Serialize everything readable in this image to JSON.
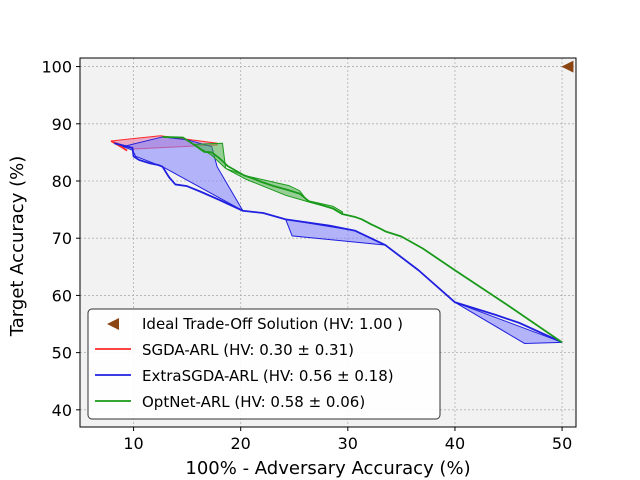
{
  "chart_data": {
    "type": "line",
    "xlabel": "100% - Adversary Accuracy (%)",
    "ylabel": "Target Accuracy (%)",
    "xlim": [
      5,
      51.3
    ],
    "ylim": [
      37,
      101.5
    ],
    "xticks": [
      10,
      20,
      30,
      40,
      50
    ],
    "yticks": [
      40,
      50,
      60,
      70,
      80,
      90,
      100
    ],
    "grid": true,
    "legend_position": "lower-left",
    "ideal_point": {
      "name": "Ideal Trade-Off Solution (HV: 1.00 )",
      "x": 50.5,
      "y": 100,
      "marker": "left-triangle",
      "color": "#8B4513"
    },
    "series": [
      {
        "name": "SGDA-ARL (HV: 0.30 ± 0.31)",
        "color": "#ff2a2a",
        "fill": "#e06fa0",
        "line": [
          [
            7.9,
            87.0
          ],
          [
            9.0,
            85.8
          ],
          [
            9.4,
            85.3
          ]
        ],
        "band_upper": [
          [
            7.9,
            87.0
          ],
          [
            12.5,
            87.9
          ],
          [
            17.8,
            86.6
          ]
        ],
        "band_lower": [
          [
            7.9,
            87.0
          ],
          [
            10.0,
            85.6
          ],
          [
            17.8,
            86.3
          ]
        ]
      },
      {
        "name": "ExtraSGDA-ARL (HV: 0.56 ± 0.18)",
        "color": "#2020e0",
        "fill": "#8080ff",
        "line": [
          [
            8.2,
            86.6
          ],
          [
            9.9,
            85.8
          ],
          [
            10.0,
            84.3
          ],
          [
            10.5,
            83.7
          ],
          [
            11.5,
            83.1
          ],
          [
            12.3,
            82.8
          ],
          [
            12.7,
            82.5
          ],
          [
            13.3,
            80.7
          ],
          [
            13.9,
            79.4
          ],
          [
            15.0,
            79.1
          ],
          [
            16.3,
            78.1
          ],
          [
            18.0,
            76.7
          ],
          [
            20.2,
            74.8
          ],
          [
            22.1,
            74.4
          ],
          [
            24.2,
            73.3
          ],
          [
            28.3,
            72.2
          ],
          [
            30.7,
            71.3
          ],
          [
            33.5,
            68.8
          ],
          [
            36.6,
            64.4
          ],
          [
            40.0,
            58.8
          ],
          [
            43.8,
            56.6
          ],
          [
            46.0,
            55.2
          ],
          [
            50.0,
            51.8
          ]
        ],
        "band_upper": [
          [
            8.2,
            86.6
          ],
          [
            9.0,
            86.0
          ],
          [
            12.7,
            87.7
          ],
          [
            15.0,
            87.2
          ],
          [
            17.3,
            86.0
          ],
          [
            17.8,
            82.5
          ],
          [
            20.2,
            74.8
          ]
        ],
        "band_lower": [
          [
            8.2,
            86.6
          ],
          [
            9.9,
            85.4
          ],
          [
            10.2,
            84.3
          ],
          [
            12.7,
            82.5
          ],
          [
            20.2,
            74.8
          ]
        ],
        "band2_upper": [
          [
            24.2,
            73.3
          ],
          [
            30.7,
            71.3
          ],
          [
            33.5,
            68.8
          ]
        ],
        "band2_lower": [
          [
            24.2,
            73.3
          ],
          [
            24.8,
            70.4
          ],
          [
            33.5,
            68.8
          ]
        ],
        "band3_upper": [
          [
            40.0,
            58.8
          ],
          [
            50.0,
            51.8
          ]
        ],
        "band3_lower": [
          [
            40.0,
            58.8
          ],
          [
            46.5,
            51.6
          ],
          [
            50.0,
            51.8
          ]
        ]
      },
      {
        "name": "OptNet-ARL (HV: 0.58 ± 0.06)",
        "color": "#1a9a1a",
        "fill": "#4ab14a",
        "line": [
          [
            12.7,
            87.7
          ],
          [
            14.6,
            87.6
          ],
          [
            15.6,
            86.4
          ],
          [
            16.6,
            85.1
          ],
          [
            17.3,
            85.0
          ],
          [
            18.0,
            84.0
          ],
          [
            18.8,
            82.6
          ],
          [
            20.3,
            81.0
          ],
          [
            21.2,
            80.4
          ],
          [
            22.0,
            79.8
          ],
          [
            23.1,
            79.1
          ],
          [
            24.3,
            78.5
          ],
          [
            25.5,
            77.8
          ],
          [
            26.4,
            76.4
          ],
          [
            27.2,
            76.0
          ],
          [
            28.6,
            75.2
          ],
          [
            29.5,
            74.2
          ],
          [
            30.7,
            73.7
          ],
          [
            31.3,
            73.3
          ],
          [
            32.2,
            72.4
          ],
          [
            33.0,
            71.7
          ],
          [
            33.5,
            71.2
          ],
          [
            35.0,
            70.3
          ],
          [
            37.0,
            68.2
          ],
          [
            40.0,
            64.4
          ],
          [
            45.0,
            58.2
          ],
          [
            50.0,
            51.8
          ]
        ],
        "band_upper": [
          [
            15.6,
            86.4
          ],
          [
            18.3,
            86.6
          ],
          [
            18.6,
            82.2
          ],
          [
            20.5,
            80.9
          ],
          [
            24.5,
            79.2
          ],
          [
            25.5,
            78.3
          ],
          [
            26.2,
            76.6
          ],
          [
            28.6,
            75.6
          ],
          [
            29.5,
            74.6
          ]
        ],
        "band_lower": [
          [
            15.6,
            86.4
          ],
          [
            17.3,
            84.5
          ],
          [
            18.6,
            82.2
          ],
          [
            20.5,
            80.3
          ],
          [
            24.2,
            77.5
          ],
          [
            26.4,
            76.3
          ],
          [
            28.6,
            75.2
          ],
          [
            29.5,
            74.2
          ]
        ]
      }
    ]
  }
}
